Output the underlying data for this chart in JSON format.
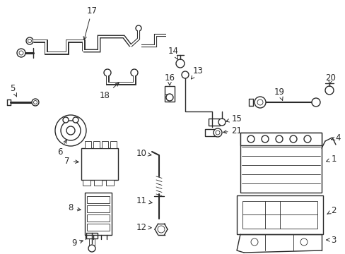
{
  "background_color": "#ffffff",
  "line_color": "#2a2a2a",
  "label_color": "#000000",
  "fig_width": 4.89,
  "fig_height": 3.6,
  "dpi": 100,
  "lw_cable": 2.2,
  "lw_part": 1.0,
  "lw_thin": 0.6,
  "fontsize": 8.5
}
